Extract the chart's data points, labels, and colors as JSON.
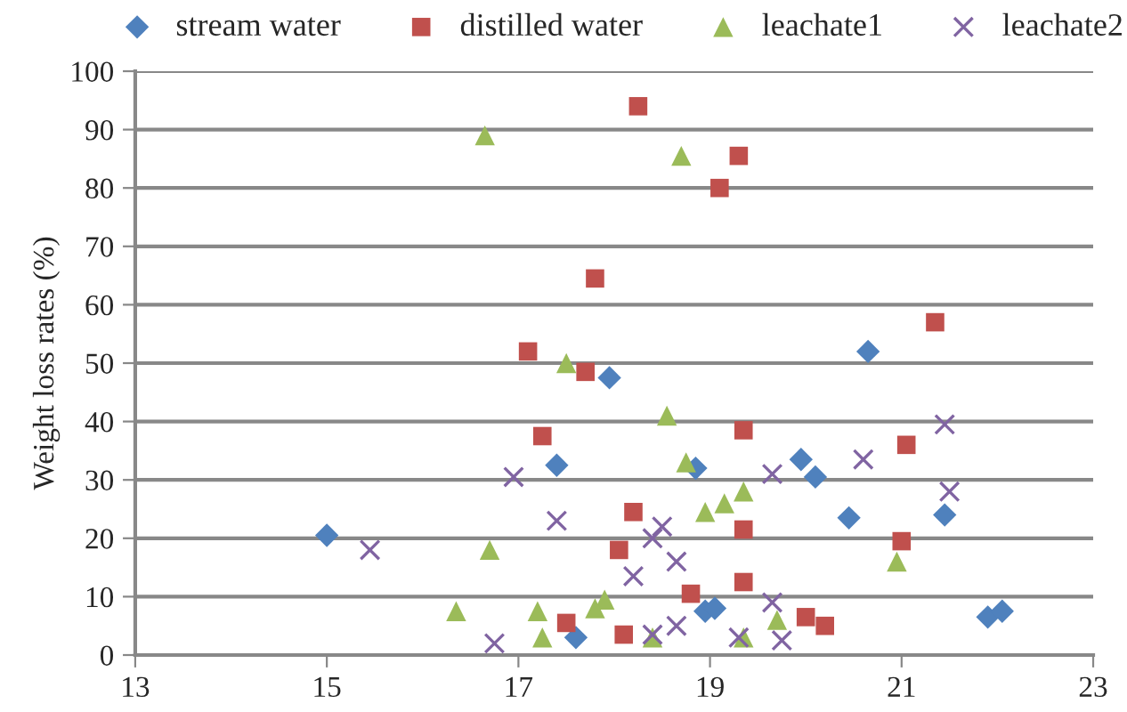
{
  "chart_data": {
    "type": "scatter",
    "ylabel": "Weight loss rates (%)",
    "xlim": [
      13,
      23
    ],
    "xticks": [
      13,
      15,
      17,
      19,
      21,
      23
    ],
    "ylim": [
      0,
      100
    ],
    "yticks": [
      0,
      10,
      20,
      30,
      40,
      50,
      60,
      70,
      80,
      90,
      100
    ],
    "grid": "y",
    "legend": "top",
    "series": [
      {
        "name": "stream water",
        "color": "#4f81bd",
        "marker": "diamond",
        "x": [
          15,
          17.4,
          17.6,
          17.95,
          18.85,
          18.95,
          19.05,
          19.95,
          20.1,
          20.45,
          20.65,
          21.45,
          21.9,
          22.05
        ],
        "values": [
          20.5,
          32.5,
          3,
          47.5,
          32,
          7.5,
          8,
          33.5,
          30.5,
          23.5,
          52,
          24,
          6.5,
          7.5
        ]
      },
      {
        "name": "distilled water",
        "color": "#c0504d",
        "marker": "square",
        "x": [
          17.1,
          17.25,
          17.5,
          17.7,
          17.8,
          18.05,
          18.1,
          18.2,
          18.25,
          18.8,
          19.1,
          19.3,
          19.35,
          19.35,
          19.35,
          20,
          20.2,
          21,
          21.05,
          21.35
        ],
        "values": [
          52,
          37.5,
          5.5,
          48.5,
          64.5,
          18,
          3.5,
          24.5,
          94,
          10.5,
          80,
          85.5,
          38.5,
          21.5,
          12.5,
          6.5,
          5,
          19.5,
          36,
          57
        ]
      },
      {
        "name": "leachate1",
        "color": "#9bbb59",
        "marker": "triangle",
        "x": [
          16.65,
          18.7,
          17.5,
          16.7,
          16.35,
          17.2,
          17.25,
          17.9,
          17.8,
          18.55,
          18.75,
          18.95,
          19.15,
          19.35,
          18.4,
          19.35,
          19.7,
          20.95
        ],
        "values": [
          89,
          85.5,
          50,
          18,
          7.5,
          7.5,
          3,
          9.5,
          8,
          41,
          33,
          24.5,
          26,
          28,
          3,
          3,
          6,
          16
        ]
      },
      {
        "name": "leachate2",
        "color": "#8064a2",
        "marker": "cross",
        "x": [
          15.45,
          16.95,
          17.4,
          16.75,
          18.2,
          18.4,
          18.5,
          18.65,
          18.4,
          18.65,
          19.65,
          19.65,
          19.3,
          19.75,
          20.6,
          21.45,
          21.5
        ],
        "values": [
          18,
          30.5,
          23,
          2,
          13.5,
          20,
          22,
          16,
          3.5,
          5,
          31,
          9,
          3,
          2.5,
          33.5,
          39.5,
          28
        ]
      }
    ]
  }
}
